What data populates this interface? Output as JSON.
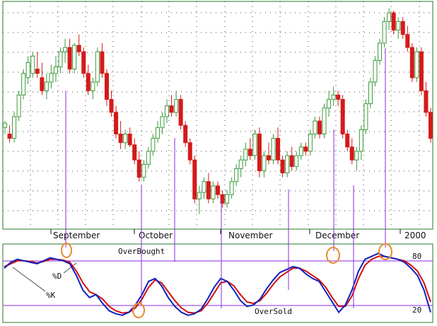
{
  "chart_data": [
    {
      "type": "candlestick",
      "title": "",
      "x_labels": [
        "September",
        "October",
        "November",
        "December",
        "2000"
      ],
      "y_range": [
        0,
        100
      ],
      "grid": true,
      "candles": [
        {
          "o": 45,
          "h": 48,
          "l": 42,
          "c": 47
        },
        {
          "o": 42,
          "h": 46,
          "l": 38,
          "c": 40
        },
        {
          "o": 40,
          "h": 52,
          "l": 38,
          "c": 50
        },
        {
          "o": 50,
          "h": 62,
          "l": 48,
          "c": 60
        },
        {
          "o": 60,
          "h": 72,
          "l": 58,
          "c": 70
        },
        {
          "o": 68,
          "h": 78,
          "l": 65,
          "c": 75
        },
        {
          "o": 70,
          "h": 80,
          "l": 68,
          "c": 78
        },
        {
          "o": 72,
          "h": 80,
          "l": 68,
          "c": 70
        },
        {
          "o": 68,
          "h": 75,
          "l": 60,
          "c": 62
        },
        {
          "o": 62,
          "h": 70,
          "l": 58,
          "c": 66
        },
        {
          "o": 66,
          "h": 74,
          "l": 63,
          "c": 70
        },
        {
          "o": 70,
          "h": 78,
          "l": 66,
          "c": 73
        },
        {
          "o": 73,
          "h": 82,
          "l": 70,
          "c": 80
        },
        {
          "o": 80,
          "h": 86,
          "l": 75,
          "c": 82
        },
        {
          "o": 82,
          "h": 86,
          "l": 70,
          "c": 72
        },
        {
          "o": 72,
          "h": 84,
          "l": 70,
          "c": 83
        },
        {
          "o": 83,
          "h": 88,
          "l": 78,
          "c": 80
        },
        {
          "o": 80,
          "h": 82,
          "l": 68,
          "c": 70
        },
        {
          "o": 70,
          "h": 74,
          "l": 60,
          "c": 62
        },
        {
          "o": 62,
          "h": 68,
          "l": 58,
          "c": 66
        },
        {
          "o": 66,
          "h": 82,
          "l": 64,
          "c": 80
        },
        {
          "o": 80,
          "h": 84,
          "l": 68,
          "c": 70
        },
        {
          "o": 70,
          "h": 72,
          "l": 55,
          "c": 58
        },
        {
          "o": 58,
          "h": 62,
          "l": 50,
          "c": 52
        },
        {
          "o": 52,
          "h": 55,
          "l": 40,
          "c": 42
        },
        {
          "o": 42,
          "h": 48,
          "l": 35,
          "c": 38
        },
        {
          "o": 38,
          "h": 44,
          "l": 35,
          "c": 42
        },
        {
          "o": 42,
          "h": 45,
          "l": 36,
          "c": 37
        },
        {
          "o": 37,
          "h": 40,
          "l": 28,
          "c": 30
        },
        {
          "o": 30,
          "h": 34,
          "l": 20,
          "c": 22
        },
        {
          "o": 22,
          "h": 30,
          "l": 20,
          "c": 28
        },
        {
          "o": 28,
          "h": 36,
          "l": 26,
          "c": 34
        },
        {
          "o": 34,
          "h": 42,
          "l": 32,
          "c": 40
        },
        {
          "o": 40,
          "h": 48,
          "l": 38,
          "c": 45
        },
        {
          "o": 45,
          "h": 52,
          "l": 42,
          "c": 50
        },
        {
          "o": 50,
          "h": 58,
          "l": 47,
          "c": 55
        },
        {
          "o": 55,
          "h": 60,
          "l": 50,
          "c": 52
        },
        {
          "o": 52,
          "h": 62,
          "l": 50,
          "c": 58
        },
        {
          "o": 58,
          "h": 60,
          "l": 44,
          "c": 46
        },
        {
          "o": 46,
          "h": 48,
          "l": 36,
          "c": 38
        },
        {
          "o": 38,
          "h": 40,
          "l": 28,
          "c": 30
        },
        {
          "o": 30,
          "h": 32,
          "l": 10,
          "c": 12
        },
        {
          "o": 12,
          "h": 18,
          "l": 5,
          "c": 15
        },
        {
          "o": 15,
          "h": 22,
          "l": 12,
          "c": 20
        },
        {
          "o": 20,
          "h": 24,
          "l": 10,
          "c": 12
        },
        {
          "o": 12,
          "h": 20,
          "l": 10,
          "c": 18
        },
        {
          "o": 18,
          "h": 20,
          "l": 12,
          "c": 14
        },
        {
          "o": 14,
          "h": 16,
          "l": 8,
          "c": 10
        },
        {
          "o": 10,
          "h": 16,
          "l": 8,
          "c": 14
        },
        {
          "o": 14,
          "h": 22,
          "l": 12,
          "c": 20
        },
        {
          "o": 20,
          "h": 28,
          "l": 18,
          "c": 26
        },
        {
          "o": 26,
          "h": 32,
          "l": 22,
          "c": 30
        },
        {
          "o": 30,
          "h": 38,
          "l": 27,
          "c": 35
        },
        {
          "o": 35,
          "h": 40,
          "l": 30,
          "c": 32
        },
        {
          "o": 32,
          "h": 44,
          "l": 30,
          "c": 42
        },
        {
          "o": 42,
          "h": 45,
          "l": 22,
          "c": 25
        },
        {
          "o": 25,
          "h": 34,
          "l": 22,
          "c": 32
        },
        {
          "o": 32,
          "h": 38,
          "l": 28,
          "c": 30
        },
        {
          "o": 30,
          "h": 42,
          "l": 28,
          "c": 40
        },
        {
          "o": 40,
          "h": 45,
          "l": 28,
          "c": 30
        },
        {
          "o": 30,
          "h": 32,
          "l": 22,
          "c": 24
        },
        {
          "o": 24,
          "h": 34,
          "l": 22,
          "c": 32
        },
        {
          "o": 32,
          "h": 36,
          "l": 25,
          "c": 27
        },
        {
          "o": 27,
          "h": 34,
          "l": 25,
          "c": 32
        },
        {
          "o": 32,
          "h": 38,
          "l": 30,
          "c": 36
        },
        {
          "o": 36,
          "h": 38,
          "l": 32,
          "c": 34
        },
        {
          "o": 34,
          "h": 44,
          "l": 32,
          "c": 42
        },
        {
          "o": 42,
          "h": 50,
          "l": 40,
          "c": 48
        },
        {
          "o": 48,
          "h": 50,
          "l": 40,
          "c": 42
        },
        {
          "o": 42,
          "h": 56,
          "l": 40,
          "c": 54
        },
        {
          "o": 54,
          "h": 62,
          "l": 50,
          "c": 58
        },
        {
          "o": 58,
          "h": 64,
          "l": 55,
          "c": 60
        },
        {
          "o": 60,
          "h": 62,
          "l": 55,
          "c": 58
        },
        {
          "o": 58,
          "h": 60,
          "l": 40,
          "c": 42
        },
        {
          "o": 42,
          "h": 44,
          "l": 34,
          "c": 36
        },
        {
          "o": 36,
          "h": 40,
          "l": 28,
          "c": 30
        },
        {
          "o": 30,
          "h": 36,
          "l": 25,
          "c": 34
        },
        {
          "o": 34,
          "h": 46,
          "l": 30,
          "c": 44
        },
        {
          "o": 44,
          "h": 58,
          "l": 42,
          "c": 56
        },
        {
          "o": 56,
          "h": 68,
          "l": 54,
          "c": 66
        },
        {
          "o": 66,
          "h": 78,
          "l": 64,
          "c": 76
        },
        {
          "o": 76,
          "h": 86,
          "l": 74,
          "c": 84
        },
        {
          "o": 84,
          "h": 96,
          "l": 82,
          "c": 94
        },
        {
          "o": 94,
          "h": 100,
          "l": 90,
          "c": 98
        },
        {
          "o": 98,
          "h": 99,
          "l": 88,
          "c": 90
        },
        {
          "o": 90,
          "h": 96,
          "l": 86,
          "c": 94
        },
        {
          "o": 94,
          "h": 96,
          "l": 86,
          "c": 88
        },
        {
          "o": 88,
          "h": 92,
          "l": 80,
          "c": 82
        },
        {
          "o": 82,
          "h": 84,
          "l": 66,
          "c": 68
        },
        {
          "o": 68,
          "h": 82,
          "l": 66,
          "c": 80
        },
        {
          "o": 80,
          "h": 82,
          "l": 60,
          "c": 62
        },
        {
          "o": 62,
          "h": 66,
          "l": 50,
          "c": 52
        },
        {
          "o": 52,
          "h": 54,
          "l": 38,
          "c": 40
        }
      ]
    },
    {
      "type": "line",
      "title": "",
      "ylim": [
        0,
        100
      ],
      "series": [
        {
          "name": "%K",
          "color": "#1020c0",
          "values": [
            70,
            78,
            82,
            80,
            78,
            76,
            80,
            84,
            82,
            80,
            76,
            60,
            40,
            30,
            34,
            22,
            12,
            8,
            6,
            10,
            20,
            34,
            52,
            56,
            46,
            30,
            18,
            10,
            6,
            8,
            14,
            28,
            44,
            56,
            52,
            40,
            26,
            18,
            20,
            28,
            42,
            54,
            64,
            68,
            72,
            70,
            62,
            56,
            52,
            38,
            24,
            10,
            20,
            40,
            66,
            82,
            86,
            90,
            86,
            84,
            82,
            78,
            70,
            60,
            40,
            10
          ]
        },
        {
          "name": "%D",
          "color": "#d01010",
          "values": [
            72,
            76,
            80,
            80,
            79,
            77,
            79,
            82,
            82,
            81,
            78,
            66,
            50,
            38,
            34,
            28,
            18,
            12,
            9,
            10,
            16,
            28,
            44,
            54,
            50,
            38,
            26,
            16,
            10,
            9,
            12,
            22,
            36,
            50,
            52,
            46,
            34,
            24,
            22,
            26,
            36,
            48,
            58,
            64,
            70,
            70,
            66,
            60,
            54,
            44,
            30,
            18,
            18,
            32,
            56,
            74,
            82,
            86,
            86,
            84,
            82,
            80,
            74,
            66,
            50,
            24
          ]
        }
      ],
      "annotations": [
        "OverBought",
        "OverSold",
        "%D",
        "%K"
      ],
      "levels": [
        "80",
        "20"
      ]
    }
  ]
}
